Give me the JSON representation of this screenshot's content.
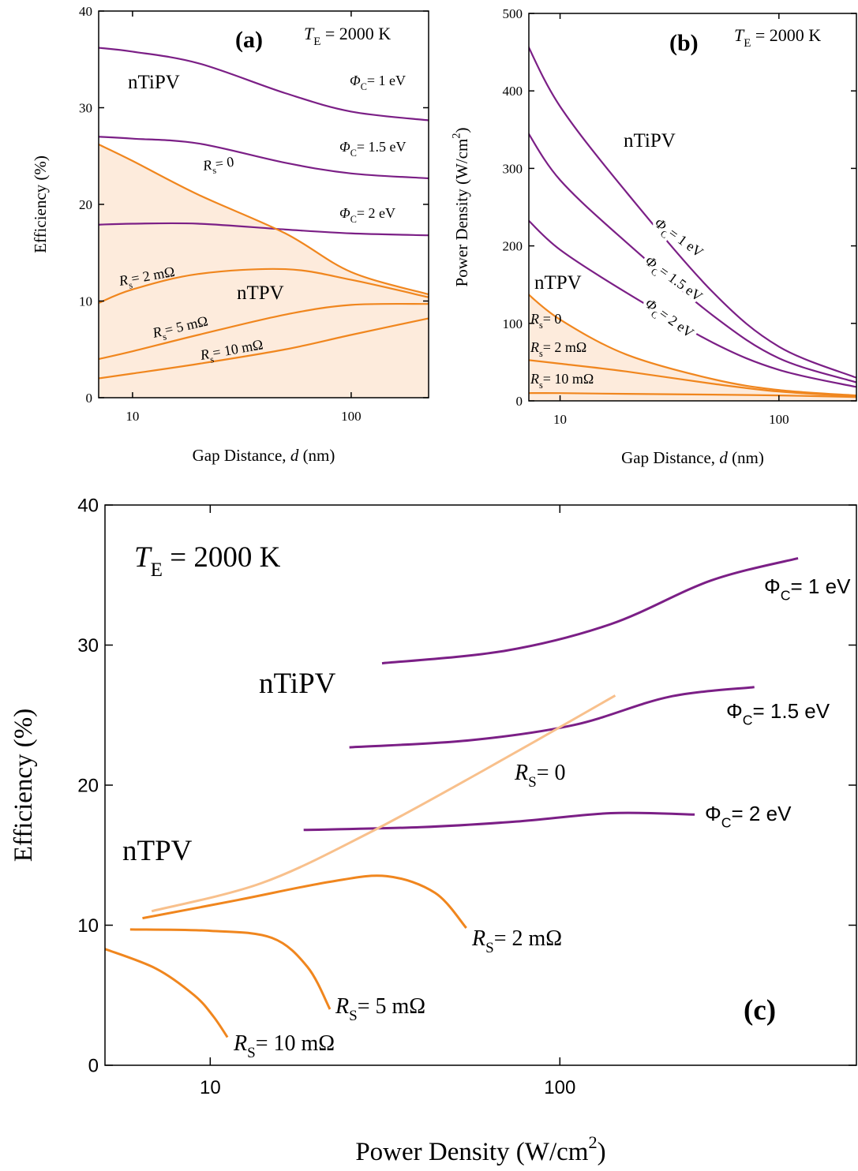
{
  "chart_data": [
    {
      "type": "line",
      "xscale": "log",
      "xlim": [
        7,
        226
      ],
      "ylim": [
        0,
        40
      ],
      "xticks": [
        10,
        100
      ],
      "yticks": [
        0,
        10,
        20,
        30,
        40
      ],
      "xlabel": [
        {
          "text": "Gap Distance, "
        },
        {
          "text": "d",
          "italic": true
        },
        {
          "text": " (nm)"
        }
      ],
      "ylabel": [
        {
          "text": "Efficiency (%)"
        }
      ],
      "x": [
        7,
        10,
        20,
        50,
        100,
        225
      ],
      "series": [
        {
          "name": [
            {
              "text": "Φ",
              "italic": true
            },
            {
              "text": "C",
              "shift": "sub"
            },
            {
              "text": "= 1 eV"
            }
          ],
          "color": "#7b1f86",
          "values": [
            36.2,
            35.8,
            34.6,
            31.5,
            29.6,
            28.7
          ]
        },
        {
          "name": [
            {
              "text": "Φ",
              "italic": true
            },
            {
              "text": "C",
              "shift": "sub"
            },
            {
              "text": "= 1.5 eV"
            }
          ],
          "color": "#7b1f86",
          "values": [
            27.0,
            26.8,
            26.3,
            24.3,
            23.2,
            22.7
          ]
        },
        {
          "name": [
            {
              "text": "Φ",
              "italic": true
            },
            {
              "text": "C",
              "shift": "sub"
            },
            {
              "text": "= 2 eV"
            }
          ],
          "color": "#7b1f86",
          "values": [
            17.9,
            18.0,
            18.0,
            17.4,
            17.0,
            16.8
          ]
        },
        {
          "name": [
            {
              "text": "R",
              "italic": true
            },
            {
              "text": "s",
              "shift": "sub"
            },
            {
              "text": "= 0"
            }
          ],
          "color": "#f0861e",
          "fill": "#fdebdc",
          "values": [
            26.2,
            24.5,
            21.0,
            17.0,
            13.0,
            10.7
          ]
        },
        {
          "name": [
            {
              "text": "R",
              "italic": true
            },
            {
              "text": "s",
              "shift": "sub"
            },
            {
              "text": "= 2 mΩ"
            }
          ],
          "color": "#f0861e",
          "values": [
            9.8,
            11.2,
            12.8,
            13.3,
            12.2,
            10.4
          ]
        },
        {
          "name": [
            {
              "text": "R",
              "italic": true
            },
            {
              "text": "s",
              "shift": "sub"
            },
            {
              "text": "= 5 mΩ"
            }
          ],
          "color": "#f0861e",
          "values": [
            4.0,
            4.8,
            6.5,
            8.6,
            9.6,
            9.7
          ]
        },
        {
          "name": [
            {
              "text": "R",
              "italic": true
            },
            {
              "text": "s",
              "shift": "sub"
            },
            {
              "text": "= 10 mΩ"
            }
          ],
          "color": "#f0861e",
          "values": [
            2.0,
            2.5,
            3.5,
            5.0,
            6.5,
            8.2
          ]
        }
      ],
      "annotations": [
        {
          "parts": [
            {
              "text": "nTiPV"
            }
          ],
          "color": "#7b1f86"
        },
        {
          "parts": [
            {
              "text": "nTPV"
            }
          ],
          "color": "#f0861e"
        },
        {
          "parts": [
            {
              "text": "(a)",
              "bold": true
            }
          ],
          "color": "#000000"
        },
        {
          "parts": [
            {
              "text": "T",
              "italic": true
            },
            {
              "text": "E",
              "shift": "sub"
            },
            {
              "text": " = 2000 K"
            }
          ],
          "color": "#000000"
        }
      ]
    },
    {
      "type": "line",
      "xscale": "log",
      "xlim": [
        7.2,
        226
      ],
      "ylim": [
        0,
        500
      ],
      "xticks": [
        10,
        100
      ],
      "yticks": [
        0,
        100,
        200,
        300,
        400,
        500
      ],
      "xlabel": [
        {
          "text": "Gap Distance, "
        },
        {
          "text": "d",
          "italic": true
        },
        {
          "text": " (nm)"
        }
      ],
      "ylabel": [
        {
          "text": "Power Density (W/cm"
        },
        {
          "text": "2",
          "shift": "super"
        },
        {
          "text": ")"
        }
      ],
      "x": [
        7,
        10,
        20,
        50,
        100,
        225
      ],
      "series": [
        {
          "name": [
            {
              "text": "Φ",
              "italic": true
            },
            {
              "text": "C",
              "shift": "sub"
            },
            {
              "text": "= 1 eV"
            }
          ],
          "color": "#7b1f86",
          "values": [
            463,
            380,
            270,
            140,
            70,
            30
          ]
        },
        {
          "name": [
            {
              "text": "Φ",
              "italic": true
            },
            {
              "text": "C",
              "shift": "sub"
            },
            {
              "text": "= 1.5 eV"
            }
          ],
          "color": "#7b1f86",
          "values": [
            350,
            285,
            205,
            110,
            55,
            24
          ]
        },
        {
          "name": [
            {
              "text": "Φ",
              "italic": true
            },
            {
              "text": "C",
              "shift": "sub"
            },
            {
              "text": "= 2 eV"
            }
          ],
          "color": "#7b1f86",
          "values": [
            236,
            195,
            140,
            75,
            40,
            18
          ]
        },
        {
          "name": [
            {
              "text": "R",
              "italic": true
            },
            {
              "text": "s",
              "shift": "sub"
            },
            {
              "text": "= 0"
            }
          ],
          "color": "#f0861e",
          "fill": "#fdebdc",
          "values": [
            140,
            105,
            60,
            28,
            14,
            7
          ]
        },
        {
          "name": [
            {
              "text": "R",
              "italic": true
            },
            {
              "text": "s",
              "shift": "sub"
            },
            {
              "text": "= 2 mΩ"
            }
          ],
          "color": "#f0861e",
          "values": [
            53,
            48,
            38,
            22,
            12,
            6
          ]
        },
        {
          "name": [
            {
              "text": "R",
              "italic": true
            },
            {
              "text": "s",
              "shift": "sub"
            },
            {
              "text": "= 10 mΩ"
            }
          ],
          "color": "#f0861e",
          "values": [
            10,
            10,
            9,
            8,
            7,
            5
          ]
        }
      ],
      "annotations": [
        {
          "parts": [
            {
              "text": "nTiPV"
            }
          ],
          "color": "#7b1f86"
        },
        {
          "parts": [
            {
              "text": "nTPV"
            }
          ],
          "color": "#f0861e"
        },
        {
          "parts": [
            {
              "text": "(b)",
              "bold": true
            }
          ],
          "color": "#000000"
        },
        {
          "parts": [
            {
              "text": "T",
              "italic": true
            },
            {
              "text": "E",
              "shift": "sub"
            },
            {
              "text": " = 2000 K"
            }
          ],
          "color": "#000000"
        }
      ]
    },
    {
      "type": "line",
      "xscale": "log",
      "xlim": [
        5,
        705
      ],
      "ylim": [
        0,
        40
      ],
      "xticks": [
        10,
        100
      ],
      "yticks": [
        0,
        10,
        20,
        30,
        40
      ],
      "xlabel": [
        {
          "text": "Power Density (W/cm"
        },
        {
          "text": "2",
          "shift": "super"
        },
        {
          "text": ")"
        }
      ],
      "ylabel": [
        {
          "text": "Efficiency (%)"
        }
      ],
      "series": [
        {
          "name": [
            {
              "text": "Φ"
            },
            {
              "text": "C",
              "shift": "sub"
            },
            {
              "text": "= 1 eV"
            }
          ],
          "color": "#7b1f86",
          "x": [
            31,
            70,
            140,
            270,
            480
          ],
          "values": [
            28.7,
            29.6,
            31.5,
            34.6,
            36.2
          ]
        },
        {
          "name": [
            {
              "text": "Φ"
            },
            {
              "text": "C",
              "shift": "sub"
            },
            {
              "text": "= 1.5 eV"
            }
          ],
          "color": "#7b1f86",
          "x": [
            25,
            55,
            110,
            205,
            360
          ],
          "values": [
            22.7,
            23.2,
            24.3,
            26.3,
            27.0
          ]
        },
        {
          "name": [
            {
              "text": "Φ"
            },
            {
              "text": "C",
              "shift": "sub"
            },
            {
              "text": "= 2 eV"
            }
          ],
          "color": "#7b1f86",
          "x": [
            18.5,
            40,
            75,
            140,
            243
          ],
          "values": [
            16.8,
            17.0,
            17.4,
            18.0,
            17.9
          ]
        },
        {
          "name": [
            {
              "text": "R",
              "italic": true
            },
            {
              "text": "S",
              "shift": "sub"
            },
            {
              "text": "= 0"
            }
          ],
          "color": "#f8c08c",
          "x": [
            6.8,
            14,
            28,
            60,
            144
          ],
          "values": [
            11.0,
            13.0,
            16.5,
            21.0,
            26.4
          ]
        },
        {
          "name": [
            {
              "text": "R",
              "italic": true
            },
            {
              "text": "S",
              "shift": "sub"
            },
            {
              "text": "= 2 mΩ"
            }
          ],
          "color": "#f0861e",
          "x": [
            6.4,
            12,
            22,
            32,
            44,
            54
          ],
          "values": [
            10.5,
            11.8,
            13.1,
            13.5,
            12.3,
            9.8
          ]
        },
        {
          "name": [
            {
              "text": "R",
              "italic": true
            },
            {
              "text": "S",
              "shift": "sub"
            },
            {
              "text": "= 5 mΩ"
            }
          ],
          "color": "#f0861e",
          "x": [
            5.9,
            10,
            15,
            19,
            22
          ],
          "values": [
            9.7,
            9.6,
            9.1,
            7.0,
            4.0
          ]
        },
        {
          "name": [
            {
              "text": "R",
              "italic": true
            },
            {
              "text": "S",
              "shift": "sub"
            },
            {
              "text": "= 10 mΩ"
            }
          ],
          "color": "#f0861e",
          "x": [
            5.0,
            7.0,
            9.0,
            10.2,
            11.2
          ],
          "values": [
            8.3,
            6.9,
            5.0,
            3.5,
            2.0
          ]
        }
      ],
      "annotations": [
        {
          "parts": [
            {
              "text": "T",
              "italic": true
            },
            {
              "text": "E",
              "shift": "sub"
            },
            {
              "text": " = 2000 K"
            }
          ],
          "color": "#000000"
        },
        {
          "parts": [
            {
              "text": "nTiPV"
            }
          ],
          "color": "#7b1f86"
        },
        {
          "parts": [
            {
              "text": "nTPV"
            }
          ],
          "color": "#f0861e"
        },
        {
          "parts": [
            {
              "text": "(c)",
              "bold": true
            }
          ],
          "color": "#000000"
        }
      ]
    }
  ]
}
